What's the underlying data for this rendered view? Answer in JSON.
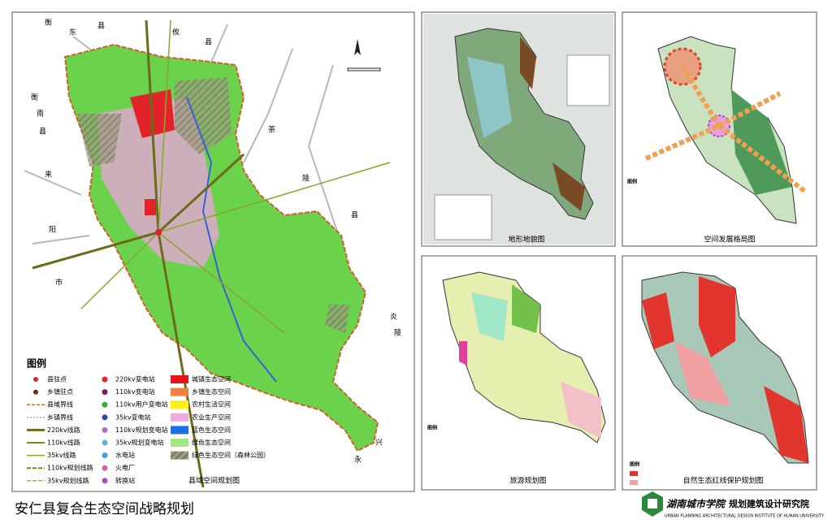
{
  "main_map": {
    "title": "县域空间规划图",
    "legend_title": "图例",
    "legend_col1": [
      "县驻点",
      "乡镇驻点",
      "县域界线",
      "乡镇界线",
      "220kv线路",
      "110kv线路",
      "35kv线路",
      "110kv规划线路",
      "35kv规划线路"
    ],
    "legend_col2": [
      "220kv变电站",
      "110kv变电站",
      "110kv用户变电站",
      "35kv变电站",
      "110kv规划变电站",
      "35kv规划变电站",
      "水电站",
      "火电厂",
      "转换站"
    ],
    "legend_col3": [
      "城镇生态空间",
      "乡镇生态空间",
      "农村生活空间",
      "农业生产空间",
      "蓝色生态空间",
      "绿色生态空间",
      "绿色生态空间（森林公园）"
    ],
    "place_labels": [
      "衡",
      "东",
      "县",
      "攸",
      "县",
      "衡",
      "南",
      "县",
      "来",
      "阳",
      "市",
      "茶",
      "陵",
      "县",
      "炎",
      "陵",
      "永",
      "兴"
    ]
  },
  "terrain_map": {
    "title": "地形地貌图"
  },
  "spatial_map": {
    "title": "空间发展格局图",
    "legend_title": "图例"
  },
  "tourism_map": {
    "title": "旅游规划图",
    "legend_title": "图例"
  },
  "redline_map": {
    "title": "自然生态红线保护规划图",
    "legend_title": "图例"
  },
  "footer": {
    "title": "安仁县复合生态空间战略规划",
    "org_logo": "湖南城市学院",
    "org": "规划建筑设计研究院",
    "org_en": "URBAN PLANNING ARCHITECTURAL DESIGN INSTITUTE OF HUNAN UNIVERSITY"
  }
}
